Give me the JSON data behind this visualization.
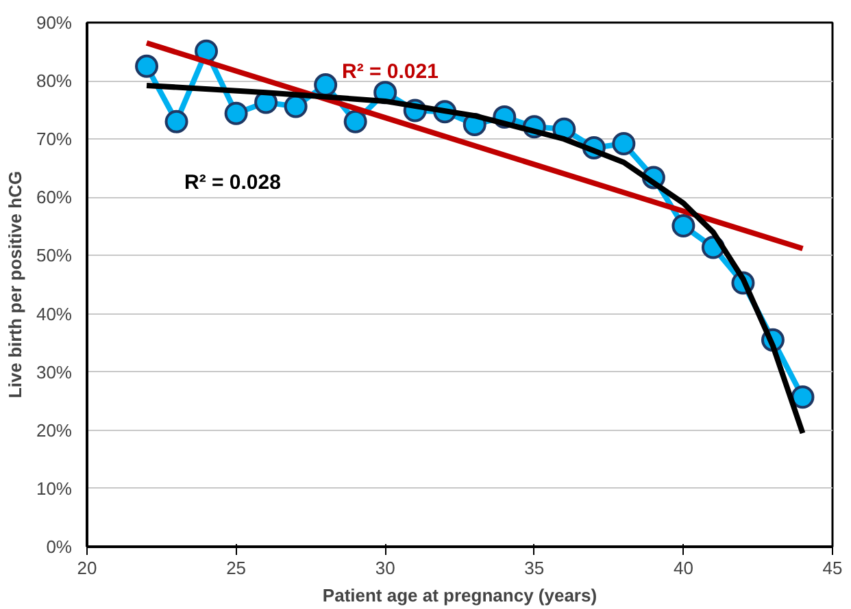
{
  "chart_data": {
    "type": "line",
    "xlabel": "Patient age at pregnancy (years)",
    "ylabel": "Live birth per positive hCG",
    "series": [
      {
        "color": "#00b0f0",
        "marker": "circle",
        "x": [
          22,
          23,
          24,
          25,
          26,
          27,
          28,
          29,
          30,
          31,
          32,
          33,
          34,
          35,
          36,
          37,
          38,
          39,
          40,
          41,
          42,
          43,
          44
        ],
        "values": [
          82.5,
          73.0,
          85.1,
          74.4,
          76.3,
          75.6,
          79.3,
          73.0,
          78.0,
          74.9,
          74.7,
          72.5,
          73.8,
          72.1,
          71.7,
          68.5,
          69.2,
          63.4,
          55.1,
          51.4,
          45.3,
          35.5,
          25.7
        ]
      },
      {
        "color": "#c00000",
        "x": [
          22,
          44
        ],
        "values": [
          86.5,
          51.2
        ]
      },
      {
        "color": "#000000",
        "x": [
          22,
          26,
          30,
          33,
          36,
          38,
          40,
          41,
          42,
          43,
          44
        ],
        "values": [
          79.2,
          78.0,
          76.5,
          74.0,
          70.0,
          66.0,
          59.0,
          54.0,
          46.0,
          34.5,
          19.5
        ]
      }
    ],
    "annotations": [
      "R² = 0.021",
      "R² = 0.028"
    ],
    "xlim": [
      20,
      45
    ],
    "xticks": [
      20,
      25,
      30,
      35,
      40,
      45
    ],
    "ylim": [
      0,
      90
    ],
    "yticks": [
      {
        "value": 0,
        "label": "0%"
      },
      {
        "value": 10,
        "label": "10%"
      },
      {
        "value": 20,
        "label": "20%"
      },
      {
        "value": 30,
        "label": "30%"
      },
      {
        "value": 40,
        "label": "40%"
      },
      {
        "value": 50,
        "label": "50%"
      },
      {
        "value": 60,
        "label": "60%"
      },
      {
        "value": 70,
        "label": "70%"
      },
      {
        "value": 80,
        "label": "80%"
      },
      {
        "value": 90,
        "label": "90%"
      }
    ],
    "grid": "y"
  }
}
